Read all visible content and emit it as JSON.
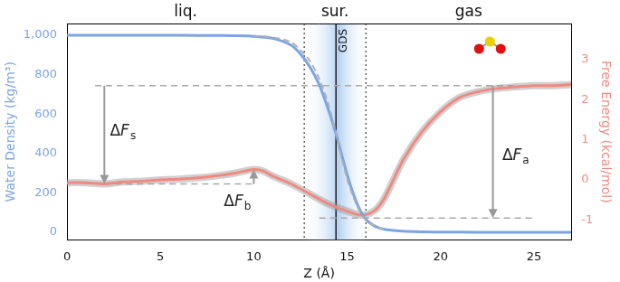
{
  "chart_data": {
    "type": "line",
    "x_label": "Z (Å)",
    "y_label": "Water Density (kg/m³)",
    "y2_label": "Free Energy (kcal/mol)",
    "xlim": [
      0,
      27
    ],
    "xticks": [
      0,
      5,
      10,
      15,
      20,
      25
    ],
    "ylim": [
      -40,
      1060
    ],
    "yticks": [
      0,
      200,
      400,
      600,
      800,
      1000
    ],
    "y2lim": [
      -1.5,
      3.9
    ],
    "y2ticks": [
      -1,
      0,
      1,
      2,
      3
    ],
    "grid": false,
    "series": [
      {
        "color": "#7ba4e3",
        "line_style": "solid",
        "axis": "y",
        "x": [
          0,
          2,
          4,
          6,
          8,
          10,
          11,
          12,
          12.5,
          13,
          13.5,
          14,
          14.4,
          14.8,
          15.2,
          15.6,
          16,
          16.5,
          17,
          18,
          19,
          20,
          22,
          24,
          26,
          27
        ],
        "values": [
          1000,
          1000,
          1000,
          1000,
          999,
          995,
          985,
          950,
          905,
          840,
          750,
          620,
          500,
          360,
          230,
          130,
          65,
          30,
          14,
          5,
          2,
          1,
          0,
          0,
          0,
          0
        ]
      },
      {
        "color": "#b0b0b0",
        "line_style": "dashed",
        "axis": "y",
        "x": [
          10,
          11,
          12,
          12.5,
          13,
          13.5,
          14,
          14.4,
          15,
          15.5,
          16,
          17
        ],
        "values": [
          998,
          990,
          965,
          925,
          870,
          780,
          650,
          500,
          270,
          140,
          60,
          10
        ]
      },
      {
        "color": "#ef8a80",
        "line_style": "solid",
        "axis": "y2",
        "x": [
          0,
          1,
          2,
          3,
          4,
          5,
          6,
          7,
          8,
          9,
          10,
          10.5,
          11,
          12,
          13,
          14,
          15,
          15.8,
          16.5,
          17,
          18,
          19,
          20,
          21,
          22,
          23,
          24,
          25,
          26,
          27
        ],
        "values": [
          -0.07,
          -0.07,
          -0.1,
          -0.05,
          -0.03,
          0.0,
          0.02,
          0.05,
          0.1,
          0.17,
          0.26,
          0.22,
          0.1,
          -0.1,
          -0.35,
          -0.6,
          -0.78,
          -0.88,
          -0.75,
          -0.45,
          0.5,
          1.2,
          1.7,
          2.05,
          2.2,
          2.28,
          2.32,
          2.35,
          2.35,
          2.38
        ]
      }
    ],
    "regions": [
      {
        "label": "liq.",
        "x": [
          0,
          12.7
        ]
      },
      {
        "label": "sur.",
        "x": [
          12.7,
          16
        ],
        "color": "#9ec3ee"
      },
      {
        "label": "gas",
        "x": [
          16,
          27
        ]
      }
    ],
    "vertical_lines": [
      {
        "x": 12.7,
        "line_style": "dotted"
      },
      {
        "x": 14.4,
        "line_style": "solid",
        "label": "GDS"
      },
      {
        "x": 16,
        "line_style": "dotted"
      }
    ],
    "reference_lines": [
      {
        "y": 2.35,
        "x": [
          1.5,
          25
        ],
        "axis": "y2"
      },
      {
        "y": -0.1,
        "x": [
          2,
          10
        ],
        "axis": "y2"
      },
      {
        "y": -0.95,
        "x": [
          13.5,
          25
        ],
        "axis": "y2"
      }
    ],
    "arrows": [
      {
        "x": 2,
        "from": 2.35,
        "to": -0.1,
        "axis": "y2"
      },
      {
        "x": 10,
        "from": -0.1,
        "to": 0.26,
        "axis": "y2"
      },
      {
        "x": 22.8,
        "from": 2.35,
        "to": -0.95,
        "axis": "y2"
      }
    ],
    "annotations": [
      {
        "text": "ΔFs",
        "x": 2.3,
        "y": 1.2,
        "axis": "y2"
      },
      {
        "text": "ΔFb",
        "x": 8.4,
        "y": -0.55,
        "axis": "y2"
      },
      {
        "text": "ΔFa",
        "x": 23.3,
        "y": 0.6,
        "axis": "y2"
      }
    ]
  }
}
